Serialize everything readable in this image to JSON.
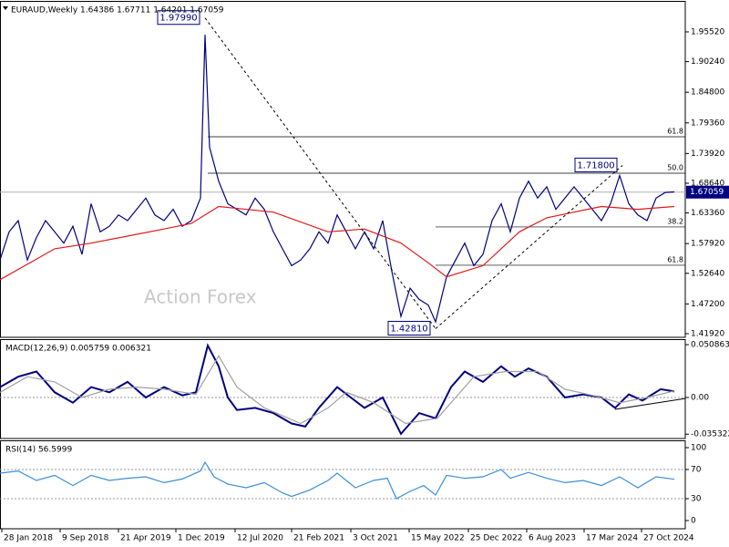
{
  "chart_data": [
    {
      "type": "line",
      "title": "EURAUD,Weekly  1.64386 1.67711 1.64201 1.67059",
      "watermark": "Action Forex",
      "xlim": [
        0,
        376
      ],
      "ylim": [
        1.4127,
        2.0086
      ],
      "yticks": [
        {
          "value": 1.9552,
          "label": "1.95520"
        },
        {
          "value": 1.9024,
          "label": "1.90240"
        },
        {
          "value": 1.848,
          "label": "1.84800"
        },
        {
          "value": 1.7936,
          "label": "1.79360"
        },
        {
          "value": 1.7392,
          "label": "1.73920"
        },
        {
          "value": 1.6864,
          "label": "1.68640"
        },
        {
          "value": 1.6336,
          "label": "1.63360"
        },
        {
          "value": 1.5792,
          "label": "1.57920"
        },
        {
          "value": 1.5264,
          "label": "1.52640"
        },
        {
          "value": 1.472,
          "label": "1.47200"
        },
        {
          "value": 1.4192,
          "label": "1.41920"
        }
      ],
      "last_price": 1.67059,
      "series": [
        {
          "name": "EURAUD",
          "color": "#000080",
          "x": [
            0,
            5,
            10,
            15,
            20,
            25,
            30,
            35,
            40,
            45,
            50,
            55,
            60,
            65,
            70,
            75,
            80,
            85,
            90,
            95,
            100,
            105,
            110,
            112.5,
            115,
            120,
            125,
            130,
            135,
            140,
            145,
            150,
            155,
            160,
            165,
            170,
            175,
            180,
            185,
            190,
            195,
            200,
            205,
            210,
            215,
            220,
            225,
            230,
            235,
            239,
            245,
            250,
            255,
            260,
            265,
            270,
            275,
            280,
            285,
            290,
            295,
            300,
            305,
            310,
            315,
            320,
            325,
            330,
            335,
            340,
            345,
            350,
            355,
            360,
            365,
            370
          ],
          "values": [
            1.55,
            1.6,
            1.62,
            1.55,
            1.59,
            1.62,
            1.6,
            1.58,
            1.61,
            1.56,
            1.65,
            1.6,
            1.61,
            1.63,
            1.62,
            1.64,
            1.66,
            1.63,
            1.62,
            1.64,
            1.61,
            1.62,
            1.66,
            1.95,
            1.75,
            1.69,
            1.65,
            1.64,
            1.63,
            1.66,
            1.64,
            1.6,
            1.57,
            1.54,
            1.55,
            1.57,
            1.6,
            1.58,
            1.63,
            1.6,
            1.57,
            1.6,
            1.57,
            1.62,
            1.53,
            1.45,
            1.5,
            1.48,
            1.47,
            1.44,
            1.52,
            1.55,
            1.58,
            1.54,
            1.56,
            1.62,
            1.65,
            1.6,
            1.66,
            1.69,
            1.66,
            1.68,
            1.64,
            1.66,
            1.68,
            1.66,
            1.64,
            1.62,
            1.65,
            1.7,
            1.65,
            1.63,
            1.62,
            1.66,
            1.67,
            1.671
          ]
        },
        {
          "name": "MA",
          "color": "#e01818",
          "x": [
            0,
            30,
            50,
            90,
            105,
            120,
            150,
            180,
            200,
            220,
            235,
            245,
            265,
            285,
            300,
            315,
            330,
            350,
            370
          ],
          "values": [
            1.515,
            1.57,
            1.58,
            1.605,
            1.615,
            1.645,
            1.635,
            1.6,
            1.605,
            1.58,
            1.545,
            1.52,
            1.54,
            1.6,
            1.625,
            1.635,
            1.645,
            1.64,
            1.645
          ]
        }
      ],
      "levels": [
        {
          "label": "61.8",
          "value": 1.769,
          "from": 114
        },
        {
          "label": "50.0",
          "value": 1.7042,
          "from": 114
        },
        {
          "label": "38.2",
          "value": 1.6087,
          "from": 239
        },
        {
          "label": "61.8",
          "value": 1.5407,
          "from": 239
        }
      ],
      "annotations": [
        {
          "x": 112.5,
          "value": 1.9799,
          "label": "1.97990"
        },
        {
          "x": 341.5,
          "value": 1.718,
          "label": "1.71800"
        },
        {
          "x": 239,
          "value": 1.4281,
          "label": "1.42810"
        }
      ],
      "trendlines": [
        {
          "x": [
            112.5,
            239
          ],
          "y": [
            1.9799,
            1.4281
          ]
        },
        {
          "x": [
            239,
            341.5
          ],
          "y": [
            1.4281,
            1.718
          ]
        }
      ]
    },
    {
      "type": "line",
      "title": "MACD(12,26,9) 0.005759 0.006321",
      "xlim": [
        0,
        376
      ],
      "ylim": [
        -0.0395,
        0.0553
      ],
      "yticks": [
        0.050863,
        {
          "value": 0,
          "label": "0.00"
        },
        -0.035322
      ],
      "reference_lines": [
        0
      ],
      "series": [
        {
          "name": "MACD",
          "color": "#000080",
          "x": [
            0,
            10,
            20,
            30,
            40,
            50,
            60,
            70,
            80,
            90,
            100,
            107.5,
            114,
            120,
            125,
            130,
            140,
            150,
            160,
            167.5,
            175,
            185,
            192.5,
            200,
            210,
            220,
            230,
            239,
            247.5,
            255,
            265,
            275,
            282.5,
            290,
            300,
            310,
            320,
            330,
            337.5,
            345,
            352.5,
            362.5,
            370
          ],
          "values": [
            0.01,
            0.02,
            0.025,
            0.005,
            -0.005,
            0.01,
            0.005,
            0.015,
            0.0,
            0.01,
            0.002,
            0.005,
            0.05,
            0.03,
            0.0,
            -0.012,
            -0.01,
            -0.015,
            -0.025,
            -0.028,
            -0.01,
            0.01,
            0.0,
            -0.01,
            0.0,
            -0.035,
            -0.015,
            -0.02,
            0.01,
            0.025,
            0.015,
            0.03,
            0.02,
            0.028,
            0.02,
            0.0,
            0.003,
            0.0,
            -0.01,
            0.003,
            -0.003,
            0.008,
            0.005759
          ]
        },
        {
          "name": "Signal",
          "color": "#a0a0a0",
          "x": [
            0,
            15,
            30,
            45,
            60,
            75,
            90,
            107.5,
            120,
            130,
            145,
            165,
            180,
            190,
            205,
            222.5,
            240,
            250,
            260,
            277.5,
            295,
            310,
            325,
            340,
            355,
            370
          ],
          "values": [
            0.005,
            0.02,
            0.015,
            0.0,
            0.008,
            0.01,
            0.008,
            0.003,
            0.04,
            0.01,
            -0.01,
            -0.025,
            -0.01,
            0.005,
            -0.005,
            -0.025,
            -0.02,
            0.0,
            0.02,
            0.025,
            0.025,
            0.008,
            0.002,
            -0.005,
            0.0,
            0.006321
          ]
        }
      ],
      "trendlines": [
        {
          "x": [
            337.5,
            376
          ],
          "y": [
            -0.0114,
            -0.001
          ]
        }
      ]
    },
    {
      "type": "line",
      "title": "RSI(14) 56.5999",
      "xlim": [
        0,
        376
      ],
      "ylim": [
        -11.25,
        108.75
      ],
      "yticks": [
        100,
        70,
        30,
        0
      ],
      "reference_lines": [
        70,
        30
      ],
      "xticks": [
        {
          "value": 1,
          "label": "28 Jan 2018"
        },
        {
          "value": 33,
          "label": "9 Sep 2018"
        },
        {
          "value": 65,
          "label": "21 Apr 2019"
        },
        {
          "value": 96.5,
          "label": "1 Dec 2019"
        },
        {
          "value": 129,
          "label": "12 Jul 2020"
        },
        {
          "value": 160,
          "label": "21 Feb 2021"
        },
        {
          "value": 192.5,
          "label": "3 Oct 2021"
        },
        {
          "value": 224.5,
          "label": "15 May 2022"
        },
        {
          "value": 257,
          "label": "25 Dec 2022"
        },
        {
          "value": 289,
          "label": "6 Aug 2023"
        },
        {
          "value": 320.5,
          "label": "17 Mar 2024"
        },
        {
          "value": 352,
          "label": "27 Oct 2024"
        }
      ],
      "series": [
        {
          "name": "RSI",
          "color": "#3a8fd8",
          "x": [
            0,
            10,
            20,
            30,
            40,
            50,
            60,
            70,
            80,
            90,
            100,
            110,
            112.5,
            117.5,
            125,
            135,
            145,
            155,
            160,
            170,
            180,
            185,
            195,
            205,
            212.5,
            217.5,
            225,
            232.5,
            239,
            245,
            255,
            265,
            275,
            280,
            290,
            300,
            310,
            320,
            330,
            340,
            350,
            360,
            370
          ],
          "values": [
            65,
            68,
            55,
            62,
            48,
            62,
            55,
            58,
            60,
            52,
            57,
            68,
            80,
            60,
            50,
            45,
            52,
            38,
            33,
            42,
            55,
            65,
            45,
            55,
            58,
            30,
            40,
            48,
            35,
            62,
            58,
            60,
            70,
            58,
            66,
            58,
            52,
            55,
            48,
            60,
            45,
            60,
            56.5999
          ]
        }
      ]
    }
  ]
}
